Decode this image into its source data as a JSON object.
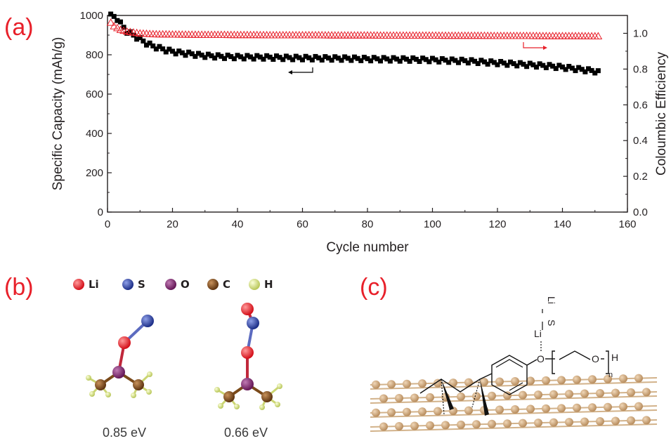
{
  "panels": {
    "a": "(a)",
    "b": "(b)",
    "c": "(c)"
  },
  "chart_data": {
    "type": "scatter",
    "xlabel": "Cycle number",
    "ylabel": "Specific Capacity (mAh/g)",
    "y2label": "Coloumbic Efficiency",
    "xlim": [
      0,
      160
    ],
    "ylim": [
      0,
      1000
    ],
    "y2lim": [
      0,
      1.1
    ],
    "xticks": [
      "0",
      "20",
      "40",
      "60",
      "80",
      "100",
      "120",
      "140",
      "160"
    ],
    "yticks": [
      "0",
      "200",
      "400",
      "600",
      "800",
      "1000"
    ],
    "y2ticks": [
      "0.0",
      "0.2",
      "0.4",
      "0.6",
      "0.8",
      "1.0"
    ],
    "grid": false,
    "series": [
      {
        "axis": "left",
        "marker": "filled-square",
        "color": "#000000",
        "x": [
          1,
          2,
          3,
          4,
          5,
          6,
          8,
          10,
          12,
          14,
          16,
          18,
          20,
          22,
          24,
          26,
          28,
          30,
          35,
          40,
          45,
          50,
          55,
          60,
          65,
          70,
          75,
          80,
          85,
          90,
          95,
          100,
          105,
          110,
          115,
          120,
          125,
          130,
          135,
          140,
          145,
          150,
          151
        ],
        "values": [
          1000,
          995,
          985,
          960,
          940,
          920,
          900,
          880,
          860,
          845,
          835,
          825,
          818,
          812,
          808,
          805,
          800,
          797,
          792,
          790,
          789,
          788,
          786,
          785,
          784,
          783,
          782,
          780,
          779,
          778,
          777,
          775,
          772,
          770,
          765,
          760,
          755,
          750,
          745,
          738,
          728,
          718,
          712
        ]
      },
      {
        "axis": "right",
        "marker": "open-triangle",
        "color": "#e8202a",
        "x": [
          1,
          2,
          3,
          4,
          6,
          8,
          10,
          12,
          14,
          16,
          18,
          20,
          25,
          30,
          35,
          40,
          45,
          50,
          55,
          60,
          65,
          70,
          75,
          80,
          85,
          90,
          95,
          100,
          105,
          110,
          115,
          120,
          125,
          130,
          135,
          140,
          145,
          150,
          151
        ],
        "values": [
          1.06,
          1.04,
          1.03,
          1.02,
          1.01,
          1.005,
          1.0,
          0.998,
          0.996,
          0.995,
          0.995,
          0.994,
          0.993,
          0.992,
          0.992,
          0.991,
          0.991,
          0.99,
          0.99,
          0.99,
          0.99,
          0.989,
          0.989,
          0.989,
          0.988,
          0.988,
          0.988,
          0.988,
          0.987,
          0.987,
          0.987,
          0.986,
          0.986,
          0.986,
          0.985,
          0.985,
          0.985,
          0.984,
          0.984
        ]
      }
    ]
  },
  "legend_b": [
    {
      "label": "Li",
      "color": "#e8202a"
    },
    {
      "label": "S",
      "color": "#2a3f9b"
    },
    {
      "label": "O",
      "color": "#7b1f6a"
    },
    {
      "label": "C",
      "color": "#7a4a1a"
    },
    {
      "label": "H",
      "color": "#d6e27a"
    }
  ],
  "energies": [
    "0.85 eV",
    "0.66 eV"
  ],
  "chem_c": {
    "li_top": "Li",
    "s": "S",
    "li": "Li",
    "o1": "O",
    "o2": "O",
    "h": "H",
    "n": "n"
  }
}
